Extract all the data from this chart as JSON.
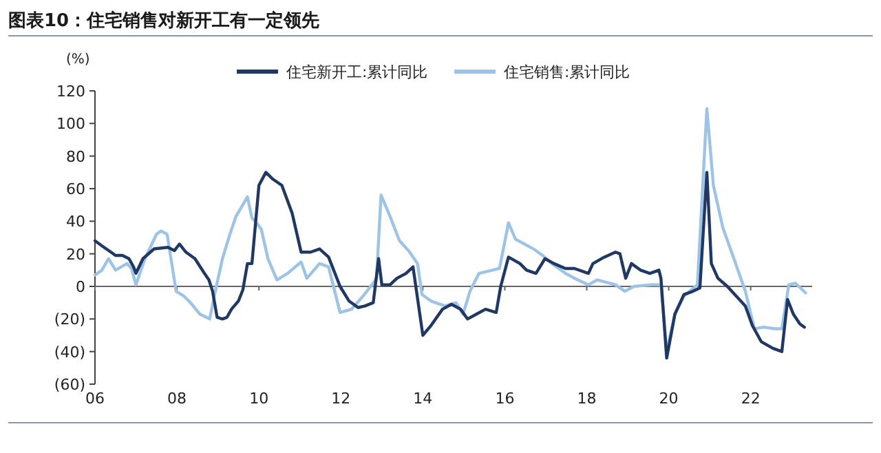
{
  "chart_data": {
    "type": "line",
    "title": "图表10：住宅销售对新开工有一定领先",
    "ylabel": "(%)",
    "xlim": [
      2006,
      2023.5
    ],
    "xticks": [
      {
        "value": 2006,
        "label": "06"
      },
      {
        "value": 2008,
        "label": "08"
      },
      {
        "value": 2010,
        "label": "10"
      },
      {
        "value": 2012,
        "label": "12"
      },
      {
        "value": 2014,
        "label": "14"
      },
      {
        "value": 2016,
        "label": "16"
      },
      {
        "value": 2018,
        "label": "18"
      },
      {
        "value": 2020,
        "label": "20"
      },
      {
        "value": 2022,
        "label": "22"
      }
    ],
    "ylim": [
      -60,
      120
    ],
    "yticks": [
      {
        "value": -60,
        "label": "(60)"
      },
      {
        "value": -40,
        "label": "(40)"
      },
      {
        "value": -20,
        "label": "(20)"
      },
      0,
      20,
      40,
      60,
      80,
      100,
      120
    ],
    "legend": "top",
    "line_style": "solid",
    "marker": "none",
    "series": [
      {
        "name": "住宅新开工:累计同比",
        "color": "#1f3864",
        "x": [
          2006,
          2006.22,
          2006.39,
          2006.5,
          2006.67,
          2006.83,
          2006.94,
          2007.0,
          2007.17,
          2007.44,
          2007.78,
          2007.94,
          2008.06,
          2008.22,
          2008.44,
          2008.67,
          2008.78,
          2008.87,
          2008.98,
          2009.11,
          2009.22,
          2009.33,
          2009.5,
          2009.61,
          2009.72,
          2009.83,
          2010.0,
          2010.17,
          2010.33,
          2010.56,
          2010.81,
          2011.03,
          2011.26,
          2011.48,
          2011.7,
          2011.98,
          2012.2,
          2012.42,
          2012.59,
          2012.79,
          2012.92,
          2013.0,
          2013.2,
          2013.37,
          2013.59,
          2013.76,
          2014.0,
          2014.2,
          2014.48,
          2014.7,
          2014.92,
          2015.09,
          2015.31,
          2015.53,
          2015.79,
          2015.9,
          2016.09,
          2016.37,
          2016.53,
          2016.76,
          2016.98,
          2017.2,
          2017.48,
          2017.7,
          2018.04,
          2018.15,
          2018.43,
          2018.7,
          2018.81,
          2018.95,
          2019.09,
          2019.31,
          2019.54,
          2019.76,
          2019.81,
          2019.95,
          2020.15,
          2020.37,
          2020.59,
          2020.76,
          2020.93,
          2021.04,
          2021.2,
          2021.43,
          2021.65,
          2021.87,
          2022.04,
          2022.26,
          2022.54,
          2022.76,
          2022.9,
          2023.04,
          2023.2,
          2023.31
        ],
        "values": [
          28,
          24,
          21,
          19,
          19,
          17,
          12,
          8,
          17,
          23,
          24,
          22,
          26,
          21,
          17,
          8,
          4,
          -3,
          -19,
          -20,
          -19,
          -14,
          -9,
          -2,
          14,
          14,
          62,
          70,
          66,
          62,
          45,
          21,
          21,
          23,
          18,
          0,
          -9,
          -13,
          -12,
          -10,
          17,
          1,
          1,
          5,
          8,
          12,
          -30,
          -24,
          -14,
          -11,
          -14,
          -20,
          -17,
          -14,
          -16,
          0,
          18,
          14,
          10,
          8,
          17,
          14,
          11,
          11,
          8,
          14,
          18,
          21,
          20,
          5,
          14,
          10,
          8,
          10,
          5,
          -44,
          -17,
          -5,
          -3,
          -1,
          70,
          14,
          5,
          0,
          -6,
          -12,
          -24,
          -34,
          -38,
          -40,
          -8,
          -17,
          -23,
          -25
        ]
      },
      {
        "name": "住宅销售:累计同比",
        "color": "#9dc3e6",
        "x": [
          2006,
          2006.17,
          2006.33,
          2006.5,
          2006.78,
          2006.89,
          2007.0,
          2007.22,
          2007.5,
          2007.61,
          2007.76,
          2007.98,
          2008.17,
          2008.33,
          2008.56,
          2008.8,
          2008.91,
          2009.11,
          2009.28,
          2009.44,
          2009.56,
          2009.72,
          2009.83,
          2009.94,
          2010.06,
          2010.22,
          2010.44,
          2010.7,
          2011.03,
          2011.17,
          2011.48,
          2011.7,
          2011.98,
          2012.26,
          2012.54,
          2012.76,
          2012.87,
          2012.98,
          2013.2,
          2013.43,
          2013.65,
          2013.87,
          2013.98,
          2014.2,
          2014.54,
          2014.81,
          2014.98,
          2015.15,
          2015.37,
          2015.7,
          2015.87,
          2016.09,
          2016.26,
          2016.48,
          2016.7,
          2016.92,
          2017.15,
          2017.48,
          2017.7,
          2018.04,
          2018.26,
          2018.7,
          2018.93,
          2019.15,
          2019.59,
          2019.81,
          2019.95,
          2020.15,
          2020.37,
          2020.7,
          2020.93,
          2021.09,
          2021.32,
          2021.59,
          2021.87,
          2022.09,
          2022.31,
          2022.59,
          2022.76,
          2022.93,
          2023.09,
          2023.26,
          2023.34
        ],
        "values": [
          7,
          10,
          17,
          10,
          14,
          11,
          1,
          17,
          32,
          34,
          32,
          -3,
          -6,
          -10,
          -17,
          -20,
          -6,
          17,
          31,
          43,
          48,
          55,
          42,
          39,
          35,
          17,
          4,
          8,
          15,
          5,
          14,
          12,
          -16,
          -14,
          -6,
          1,
          5,
          56,
          43,
          28,
          22,
          14,
          -5,
          -9,
          -12,
          -10,
          -17,
          -3,
          8,
          10,
          11,
          39,
          29,
          26,
          23,
          19,
          14,
          8,
          5,
          1,
          4,
          1,
          -3,
          0,
          1,
          1,
          -40,
          -17,
          -6,
          1,
          109,
          62,
          36,
          17,
          -3,
          -26,
          -25,
          -26,
          -26,
          1,
          2,
          -2,
          -4
        ]
      }
    ]
  }
}
